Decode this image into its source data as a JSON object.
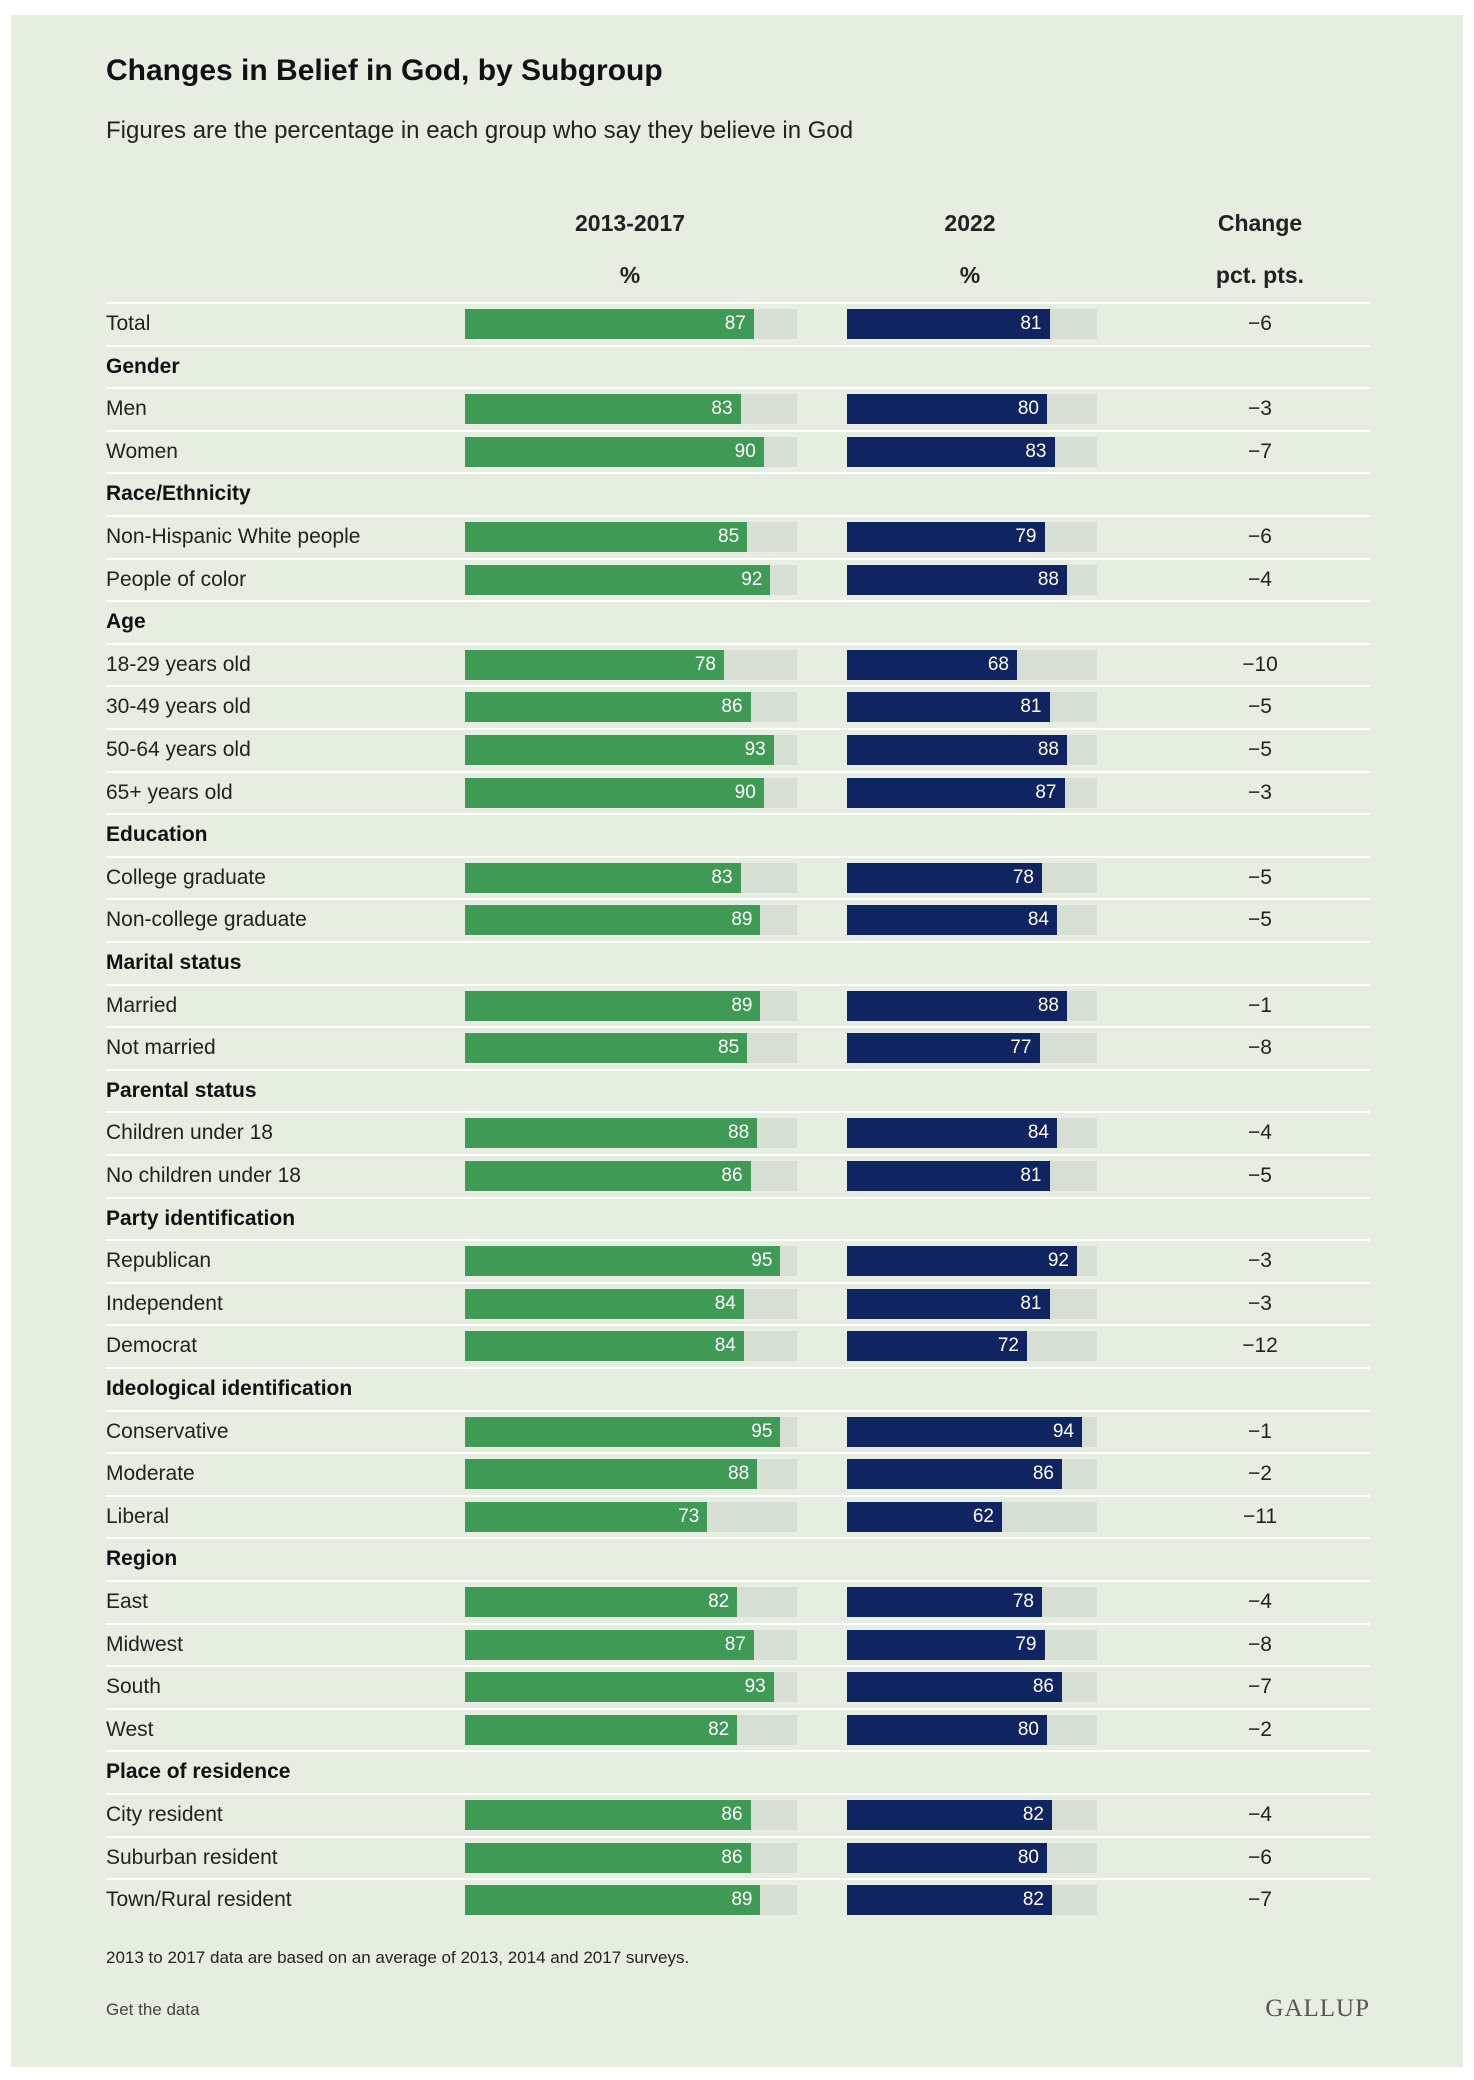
{
  "title": "Changes in Belief in God, by Subgroup",
  "subtitle": "Figures are the percentage in each group who say they believe in God",
  "columns": {
    "period1": {
      "label": "2013-2017",
      "unit": "%"
    },
    "period2": {
      "label": "2022",
      "unit": "%"
    },
    "change": {
      "label": "Change",
      "unit": "pct. pts."
    }
  },
  "footnote": "2013 to 2017 data are based on an average of 2013, 2014 and 2017 surveys.",
  "get_data_label": "Get the data",
  "logo_text": "GALLUP",
  "colors": {
    "period1": "#3f9a56",
    "period2": "#112462",
    "track": "#d7dfd5",
    "background": "#e5eee1"
  },
  "chart_data": {
    "type": "bar",
    "orientation": "horizontal",
    "xlim": [
      0,
      100
    ],
    "series": [
      {
        "name": "2013-2017",
        "color": "#3f9a56"
      },
      {
        "name": "2022",
        "color": "#112462"
      }
    ],
    "rows": [
      {
        "kind": "item",
        "label": "Total",
        "v1": 87,
        "v2": 81,
        "change": "−6"
      },
      {
        "kind": "group",
        "label": "Gender"
      },
      {
        "kind": "item",
        "label": "Men",
        "v1": 83,
        "v2": 80,
        "change": "−3"
      },
      {
        "kind": "item",
        "label": "Women",
        "v1": 90,
        "v2": 83,
        "change": "−7"
      },
      {
        "kind": "group",
        "label": "Race/Ethnicity"
      },
      {
        "kind": "item",
        "label": "Non-Hispanic White people",
        "v1": 85,
        "v2": 79,
        "change": "−6"
      },
      {
        "kind": "item",
        "label": "People of color",
        "v1": 92,
        "v2": 88,
        "change": "−4"
      },
      {
        "kind": "group",
        "label": "Age"
      },
      {
        "kind": "item",
        "label": "18-29 years old",
        "v1": 78,
        "v2": 68,
        "change": "−10"
      },
      {
        "kind": "item",
        "label": "30-49 years old",
        "v1": 86,
        "v2": 81,
        "change": "−5"
      },
      {
        "kind": "item",
        "label": "50-64 years old",
        "v1": 93,
        "v2": 88,
        "change": "−5"
      },
      {
        "kind": "item",
        "label": "65+ years old",
        "v1": 90,
        "v2": 87,
        "change": "−3"
      },
      {
        "kind": "group",
        "label": "Education"
      },
      {
        "kind": "item",
        "label": "College graduate",
        "v1": 83,
        "v2": 78,
        "change": "−5"
      },
      {
        "kind": "item",
        "label": "Non-college graduate",
        "v1": 89,
        "v2": 84,
        "change": "−5"
      },
      {
        "kind": "group",
        "label": "Marital status"
      },
      {
        "kind": "item",
        "label": "Married",
        "v1": 89,
        "v2": 88,
        "change": "−1"
      },
      {
        "kind": "item",
        "label": "Not married",
        "v1": 85,
        "v2": 77,
        "change": "−8"
      },
      {
        "kind": "group",
        "label": "Parental status"
      },
      {
        "kind": "item",
        "label": "Children under 18",
        "v1": 88,
        "v2": 84,
        "change": "−4"
      },
      {
        "kind": "item",
        "label": "No children under 18",
        "v1": 86,
        "v2": 81,
        "change": "−5"
      },
      {
        "kind": "group",
        "label": "Party identification"
      },
      {
        "kind": "item",
        "label": "Republican",
        "v1": 95,
        "v2": 92,
        "change": "−3"
      },
      {
        "kind": "item",
        "label": "Independent",
        "v1": 84,
        "v2": 81,
        "change": "−3"
      },
      {
        "kind": "item",
        "label": "Democrat",
        "v1": 84,
        "v2": 72,
        "change": "−12"
      },
      {
        "kind": "group",
        "label": "Ideological identification"
      },
      {
        "kind": "item",
        "label": "Conservative",
        "v1": 95,
        "v2": 94,
        "change": "−1"
      },
      {
        "kind": "item",
        "label": "Moderate",
        "v1": 88,
        "v2": 86,
        "change": "−2"
      },
      {
        "kind": "item",
        "label": "Liberal",
        "v1": 73,
        "v2": 62,
        "change": "−11"
      },
      {
        "kind": "group",
        "label": "Region"
      },
      {
        "kind": "item",
        "label": "East",
        "v1": 82,
        "v2": 78,
        "change": "−4"
      },
      {
        "kind": "item",
        "label": "Midwest",
        "v1": 87,
        "v2": 79,
        "change": "−8"
      },
      {
        "kind": "item",
        "label": "South",
        "v1": 93,
        "v2": 86,
        "change": "−7"
      },
      {
        "kind": "item",
        "label": "West",
        "v1": 82,
        "v2": 80,
        "change": "−2"
      },
      {
        "kind": "group",
        "label": "Place of residence"
      },
      {
        "kind": "item",
        "label": "City resident",
        "v1": 86,
        "v2": 82,
        "change": "−4"
      },
      {
        "kind": "item",
        "label": "Suburban resident",
        "v1": 86,
        "v2": 80,
        "change": "−6"
      },
      {
        "kind": "item",
        "label": "Town/Rural resident",
        "v1": 89,
        "v2": 82,
        "change": "−7"
      }
    ]
  }
}
